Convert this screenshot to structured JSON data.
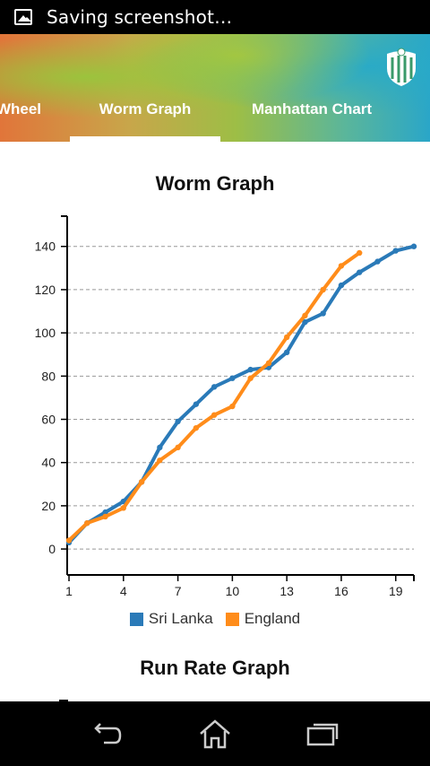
{
  "status_bar": {
    "notification_text": "Saving screenshot…",
    "icon": "image-icon"
  },
  "header": {
    "logo_icon": "cricket-shield-icon",
    "tabs": [
      {
        "label": "Wheel"
      },
      {
        "label": "Worm Graph",
        "selected": true
      },
      {
        "label": "Manhattan Chart"
      }
    ]
  },
  "worm_graph": {
    "title": "Worm Graph"
  },
  "run_rate_graph": {
    "title": "Run Rate Graph"
  },
  "chart_data": {
    "type": "line",
    "title": "Worm Graph",
    "xlabel": "",
    "ylabel": "",
    "x_ticks": [
      1,
      4,
      7,
      10,
      13,
      16,
      19
    ],
    "y_ticks": [
      0,
      20,
      40,
      60,
      80,
      100,
      120,
      140
    ],
    "xlim": [
      0.9,
      20
    ],
    "ylim": [
      -12,
      154
    ],
    "grid": "horizontal dashed",
    "legend": "bottom-center",
    "series": [
      {
        "name": "Sri Lanka",
        "color": "#2a7ab8",
        "x": [
          1,
          2,
          3,
          4,
          5,
          6,
          7,
          8,
          9,
          10,
          11,
          12,
          13,
          14,
          15,
          16,
          17,
          18,
          19,
          20
        ],
        "values": [
          3,
          12,
          17,
          22,
          31,
          47,
          59,
          67,
          75,
          79,
          83,
          84,
          91,
          105,
          109,
          122,
          128,
          133,
          138,
          140
        ]
      },
      {
        "name": "England",
        "color": "#ff8c1a",
        "x": [
          1,
          2,
          3,
          4,
          5,
          6,
          7,
          8,
          9,
          10,
          11,
          12,
          13,
          14,
          15,
          16,
          17
        ],
        "values": [
          4,
          12,
          15,
          19,
          31,
          41,
          47,
          56,
          62,
          66,
          79,
          86,
          98,
          108,
          120,
          131,
          137
        ]
      }
    ]
  },
  "nav_bar": {
    "back_icon": "back-icon",
    "home_icon": "home-icon",
    "recents_icon": "recents-icon"
  }
}
